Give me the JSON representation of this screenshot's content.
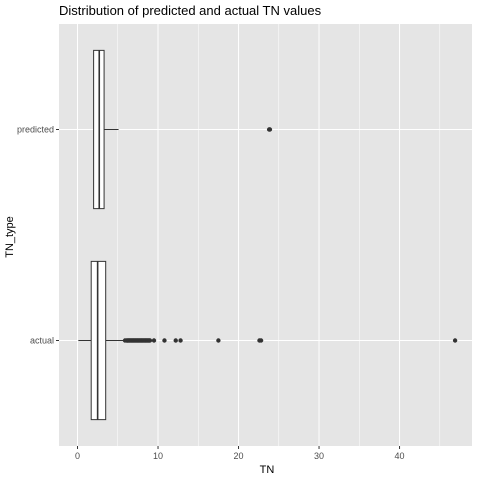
{
  "chart_data": {
    "type": "boxplot",
    "orientation": "horizontal",
    "title": "Distribution of predicted and actual TN values",
    "xlabel": "TN",
    "ylabel": "TN_type",
    "xlim": [
      -2.3,
      49.0
    ],
    "x_ticks": [
      0,
      10,
      20,
      30,
      40
    ],
    "x_tick_labels": [
      "0",
      "10",
      "20",
      "30",
      "40"
    ],
    "categories": [
      "actual",
      "predicted"
    ],
    "grid": true,
    "colors": {
      "panel_bg": "#e5e5e5",
      "grid": "#ffffff",
      "box_fill": "#ffffff",
      "box_stroke": "#333333",
      "outlier": "#333333"
    },
    "boxes": [
      {
        "category": "actual",
        "whisker_low": 0.1,
        "q1": 1.7,
        "median": 2.5,
        "q3": 3.5,
        "whisker_high": 5.9,
        "outliers": [
          5.9,
          6.1,
          6.2,
          6.3,
          6.4,
          6.5,
          6.6,
          6.7,
          6.8,
          6.9,
          7.0,
          7.1,
          7.2,
          7.3,
          7.4,
          7.5,
          7.6,
          7.7,
          7.8,
          7.9,
          8.0,
          8.1,
          8.2,
          8.3,
          8.4,
          8.5,
          8.6,
          8.7,
          8.8,
          8.9,
          9.0,
          9.5,
          10.8,
          12.2,
          12.8,
          17.5,
          22.6,
          22.8,
          46.9
        ]
      },
      {
        "category": "predicted",
        "whisker_low": 2.0,
        "q1": 2.0,
        "median": 2.7,
        "q3": 3.3,
        "whisker_high": 5.1,
        "outliers": [
          23.8,
          23.9
        ]
      }
    ]
  }
}
